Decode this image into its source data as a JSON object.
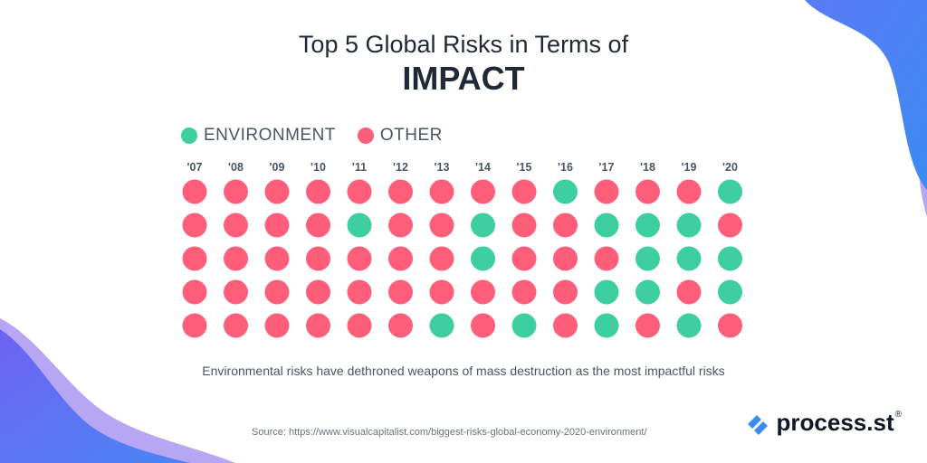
{
  "title": {
    "line1": "Top 5 Global Risks in Terms of",
    "line2": "IMPACT"
  },
  "colors": {
    "environment": "#3ECFA0",
    "other": "#FF5E7A",
    "accent_blue": "#3D8BF2",
    "accent_purple": "#7B6CF6"
  },
  "legend": [
    {
      "label": "ENVIRONMENT",
      "color": "#3ECFA0"
    },
    {
      "label": "OTHER",
      "color": "#FF5E7A"
    }
  ],
  "caption": "Environmental risks have dethroned weapons of mass destruction as the most impactful risks",
  "source": "Source: https://www.visualcapitalist.com/biggest-risks-global-economy-2020-environment/",
  "logo": {
    "icon": "process-st-logo-icon",
    "text": "process.st",
    "sup": "®"
  },
  "chart_data": {
    "type": "heatmap",
    "categories": [
      "'07",
      "'08",
      "'09",
      "'10",
      "'11",
      "'12",
      "'13",
      "'14",
      "'15",
      "'16",
      "'17",
      "'18",
      "'19",
      "'20"
    ],
    "rows": 5,
    "legend": [
      "ENVIRONMENT",
      "OTHER"
    ],
    "grid": false,
    "columns": [
      [
        "OTHER",
        "OTHER",
        "OTHER",
        "OTHER",
        "OTHER"
      ],
      [
        "OTHER",
        "OTHER",
        "OTHER",
        "OTHER",
        "OTHER"
      ],
      [
        "OTHER",
        "OTHER",
        "OTHER",
        "OTHER",
        "OTHER"
      ],
      [
        "OTHER",
        "OTHER",
        "OTHER",
        "OTHER",
        "OTHER"
      ],
      [
        "OTHER",
        "ENVIRONMENT",
        "OTHER",
        "OTHER",
        "OTHER"
      ],
      [
        "OTHER",
        "OTHER",
        "OTHER",
        "OTHER",
        "OTHER"
      ],
      [
        "OTHER",
        "OTHER",
        "OTHER",
        "OTHER",
        "ENVIRONMENT"
      ],
      [
        "OTHER",
        "ENVIRONMENT",
        "ENVIRONMENT",
        "OTHER",
        "OTHER"
      ],
      [
        "OTHER",
        "OTHER",
        "OTHER",
        "OTHER",
        "ENVIRONMENT"
      ],
      [
        "ENVIRONMENT",
        "OTHER",
        "OTHER",
        "OTHER",
        "OTHER"
      ],
      [
        "OTHER",
        "ENVIRONMENT",
        "OTHER",
        "ENVIRONMENT",
        "ENVIRONMENT"
      ],
      [
        "OTHER",
        "ENVIRONMENT",
        "ENVIRONMENT",
        "ENVIRONMENT",
        "OTHER"
      ],
      [
        "OTHER",
        "ENVIRONMENT",
        "ENVIRONMENT",
        "OTHER",
        "ENVIRONMENT"
      ],
      [
        "ENVIRONMENT",
        "OTHER",
        "ENVIRONMENT",
        "ENVIRONMENT",
        "OTHER"
      ]
    ]
  }
}
